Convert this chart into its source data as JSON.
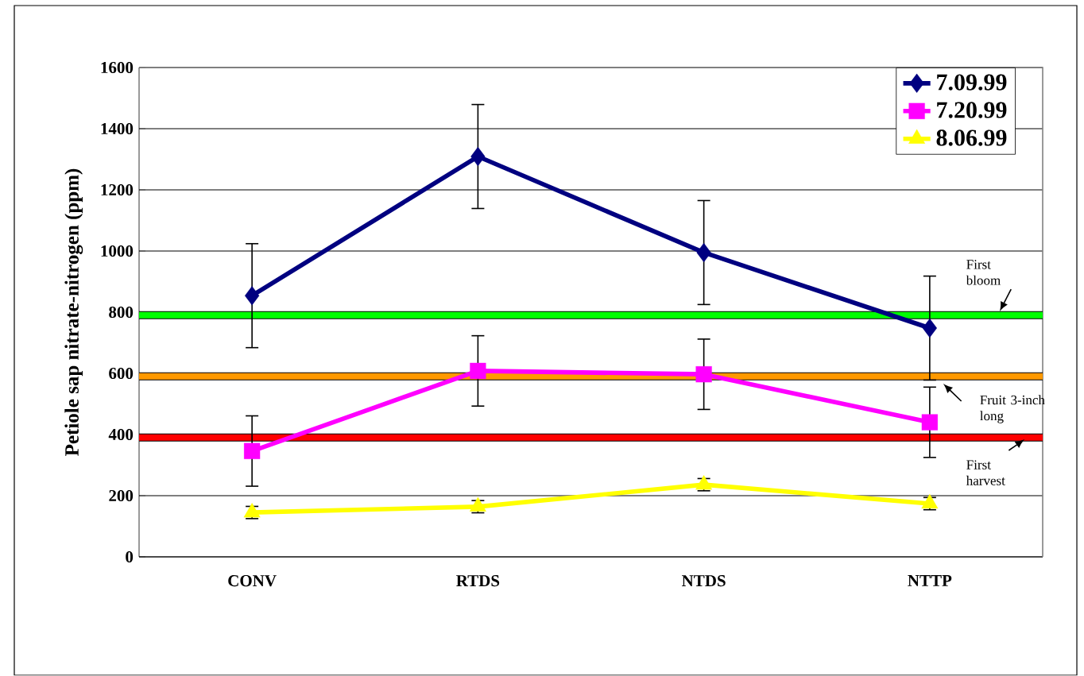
{
  "chart_data": {
    "type": "line",
    "ylabel": "Petiole sap nitrate-nitrogen (ppm)",
    "categories": [
      "CONV",
      "RTDS",
      "NTDS",
      "NTTP"
    ],
    "series": [
      {
        "name": "7.09.99",
        "color": "#000080",
        "marker": "diamond",
        "values": [
          854,
          1309,
          995,
          748
        ],
        "errors": [
          170,
          170,
          170,
          170
        ]
      },
      {
        "name": "7.20.99",
        "color": "#ff00ff",
        "marker": "square",
        "values": [
          346,
          608,
          597,
          440
        ],
        "errors": [
          115,
          115,
          115,
          115
        ]
      },
      {
        "name": "8.06.99",
        "color": "#ffff00",
        "marker": "triangle",
        "values": [
          145,
          164,
          236,
          174
        ],
        "errors": [
          20,
          20,
          20,
          20
        ]
      }
    ],
    "ylim": [
      0,
      1600
    ],
    "yticks": [
      0,
      200,
      400,
      600,
      800,
      1000,
      1200,
      1400,
      1600
    ],
    "grid": "y",
    "legend": "top right",
    "ref_lines": [
      {
        "axis": "y",
        "value": 790,
        "label": "First bloom",
        "color": "#00ff00"
      },
      {
        "axis": "y",
        "value": 590,
        "label": "Fruit 3-inch long",
        "color": "#ff9900"
      },
      {
        "axis": "y",
        "value": 390,
        "label": "First harvest",
        "color": "#ff0000"
      }
    ]
  }
}
